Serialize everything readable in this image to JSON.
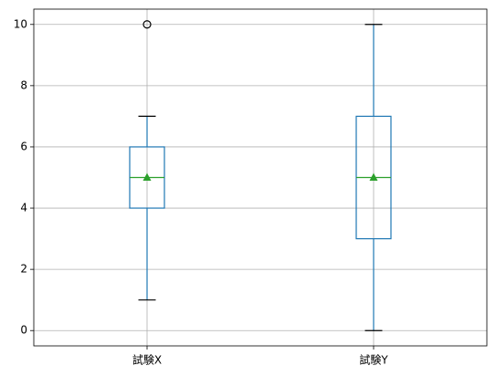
{
  "chart_data": {
    "type": "box",
    "categories": [
      "試験X",
      "試験Y"
    ],
    "boxes": [
      {
        "whislo": 1,
        "q1": 4,
        "med": 5,
        "q3": 6,
        "whishi": 7,
        "mean": 5,
        "fliers": [
          10
        ]
      },
      {
        "whislo": 0,
        "q1": 3,
        "med": 5,
        "q3": 7,
        "whishi": 10,
        "mean": 5,
        "fliers": []
      }
    ],
    "box_color": "#1f77b4",
    "median_color": "#2ca02c",
    "mean_color": "#2ca02c",
    "cap_color": "#000000",
    "ylim": [
      -0.5,
      10.5
    ],
    "yticks": [
      0,
      2,
      4,
      6,
      8,
      10
    ],
    "grid": true
  }
}
